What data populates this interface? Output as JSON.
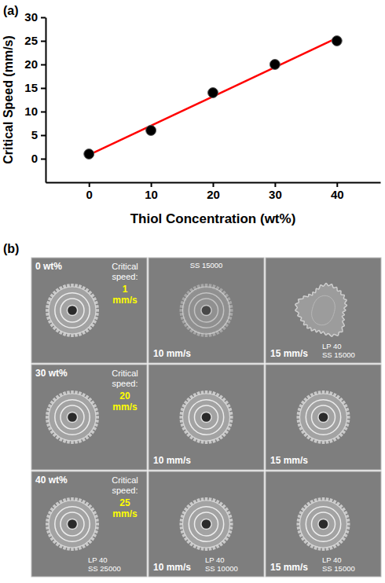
{
  "chart_data": {
    "type": "scatter",
    "x_label": "Thiol Concentration (wt%)",
    "y_label": "Critical Speed (mm/s)",
    "x": [
      0,
      10,
      20,
      30,
      40
    ],
    "series": [
      {
        "type": "scatter",
        "color": "#000000",
        "marker": "circle",
        "values": [
          1,
          6,
          14,
          20,
          25
        ]
      },
      {
        "type": "line",
        "color": "#ff0000",
        "line_style": "solid",
        "x": [
          0,
          40
        ],
        "values": [
          0.8,
          25.6
        ]
      }
    ],
    "xlim": [
      -7,
      47
    ],
    "ylim": [
      -5,
      30
    ],
    "xticks": [
      0,
      10,
      20,
      30,
      40
    ],
    "yticks": [
      0,
      5,
      10,
      15,
      20,
      25,
      30
    ],
    "grid": false
  },
  "panel_labels": [
    "(a)",
    "(b)"
  ],
  "sem_images": {
    "rows": [
      {
        "concentration": "0 wt%",
        "critical_speed_title": "Critical speed:",
        "critical_speed": "1 mm/s",
        "cells": [
          {
            "speed": "10 mm/s",
            "info": [
              "SS 15000"
            ]
          },
          {
            "speed": "15 mm/s",
            "info": [
              "LP 40",
              "SS 15000"
            ]
          }
        ]
      },
      {
        "concentration": "30 wt%",
        "critical_speed_title": "Critical speed:",
        "critical_speed": "20 mm/s",
        "cells": [
          {
            "speed": "10 mm/s"
          },
          {
            "speed": "15 mm/s"
          }
        ]
      },
      {
        "concentration": "40 wt%",
        "critical_speed_title": "Critical speed:",
        "critical_speed": "25 mm/s",
        "info": [
          "LP 40",
          "SS 25000"
        ],
        "cells": [
          {
            "speed": "10 mm/s",
            "info": [
              "LP 40",
              "SS 10000"
            ]
          },
          {
            "speed": "15 mm/s",
            "info": [
              "LP 40",
              "SS 15000"
            ]
          }
        ]
      }
    ]
  }
}
